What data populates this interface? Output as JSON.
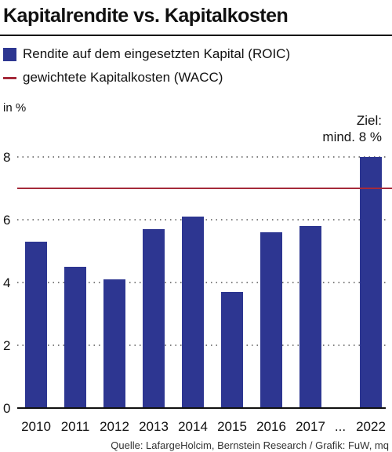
{
  "title": "Kapitalrendite vs. Kapitalkosten",
  "legend": {
    "roic_label": "Rendite auf dem eingesetzten Kapital (ROIC)",
    "wacc_label": "gewichtete Kapitalkosten (WACC)"
  },
  "unit_label": "in %",
  "annotation": {
    "line1": "Ziel:",
    "line2": "mind. 8 %"
  },
  "ellipsis": "...",
  "source": "Quelle: LafargeHolcim, Bernstein Research / Grafik: FuW, mq",
  "colors": {
    "bar": "#2d3691",
    "wacc": "#a52a3a",
    "grid": "#333333"
  },
  "chart_data": {
    "type": "bar",
    "categories": [
      "2010",
      "2011",
      "2012",
      "2013",
      "2014",
      "2015",
      "2016",
      "2017",
      "2022"
    ],
    "series": [
      {
        "name": "Rendite auf dem eingesetzten Kapital (ROIC)",
        "values": [
          5.3,
          4.5,
          4.1,
          5.7,
          6.1,
          3.7,
          5.6,
          5.8,
          8.0
        ]
      }
    ],
    "reference_line": {
      "name": "gewichtete Kapitalkosten (WACC)",
      "value": 7
    },
    "yticks": [
      0,
      2,
      4,
      6,
      8
    ],
    "ylim": [
      0,
      8
    ],
    "ylabel": "in %",
    "grid": "dotted horizontal",
    "legend_position": "top-left"
  }
}
